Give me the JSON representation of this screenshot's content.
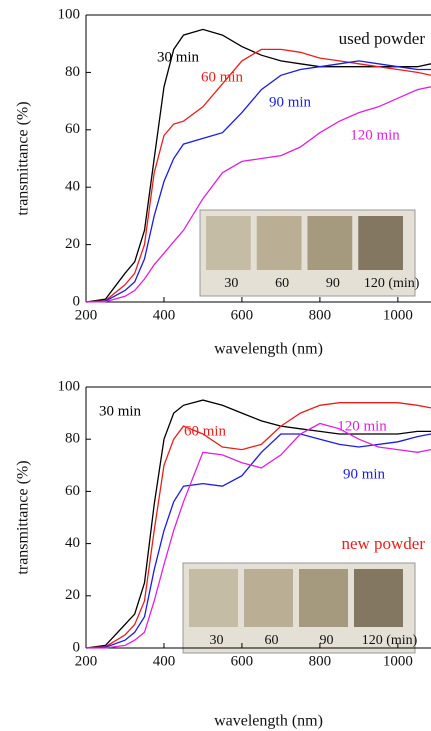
{
  "chart_data": [
    {
      "type": "line",
      "xlabel": "wavelength (nm)",
      "ylabel": "transmittance (%)",
      "annotation": "used powder",
      "inset_labels": [
        "30",
        "60",
        "90",
        "120 (min)"
      ],
      "xlim": [
        200,
        1085
      ],
      "ylim": [
        0,
        100
      ],
      "xticks": [
        200,
        400,
        600,
        800,
        1000
      ],
      "yticks": [
        0,
        20,
        40,
        60,
        80,
        100
      ],
      "x": [
        200,
        250,
        300,
        325,
        350,
        375,
        400,
        425,
        450,
        500,
        550,
        600,
        650,
        700,
        750,
        800,
        850,
        900,
        950,
        1000,
        1050,
        1085
      ],
      "series": [
        {
          "name": "30 min",
          "color": "#000000",
          "values": [
            0,
            1,
            10,
            14,
            25,
            50,
            75,
            88,
            93,
            95,
            93,
            89,
            86,
            84,
            83,
            82,
            82,
            82,
            82,
            82,
            82,
            83
          ]
        },
        {
          "name": "60 min",
          "color": "#e8201c",
          "values": [
            0,
            0.5,
            6,
            10,
            20,
            45,
            58,
            62,
            63,
            68,
            76,
            84,
            88,
            88,
            87,
            85,
            84,
            83,
            82,
            81,
            80,
            79
          ]
        },
        {
          "name": "90 min",
          "color": "#1c1ce0",
          "values": [
            0,
            0.3,
            4,
            7,
            15,
            30,
            42,
            50,
            55,
            57,
            59,
            66,
            74,
            79,
            81,
            82,
            83,
            84,
            83,
            82,
            81,
            81
          ]
        },
        {
          "name": "120 min",
          "color": "#e020e0",
          "values": [
            0,
            0.1,
            2,
            4,
            8,
            13,
            17,
            21,
            25,
            36,
            45,
            49,
            50,
            51,
            54,
            59,
            63,
            66,
            68,
            71,
            74,
            75
          ]
        }
      ]
    },
    {
      "type": "line",
      "xlabel": "wavelength (nm)",
      "ylabel": "transmittance (%)",
      "annotation": "new powder",
      "inset_labels": [
        "30",
        "60",
        "90",
        "120 (min)"
      ],
      "xlim": [
        200,
        1085
      ],
      "ylim": [
        0,
        100
      ],
      "xticks": [
        200,
        400,
        600,
        800,
        1000
      ],
      "yticks": [
        0,
        20,
        40,
        60,
        80,
        100
      ],
      "x": [
        200,
        250,
        300,
        325,
        350,
        375,
        400,
        425,
        450,
        500,
        550,
        600,
        650,
        700,
        750,
        800,
        850,
        900,
        950,
        1000,
        1050,
        1085
      ],
      "series": [
        {
          "name": "30 min",
          "color": "#000000",
          "values": [
            0,
            1,
            9,
            13,
            25,
            55,
            80,
            90,
            93,
            95,
            93,
            90,
            87,
            85,
            84,
            83,
            82,
            82,
            82,
            82,
            83,
            83
          ]
        },
        {
          "name": "60 min",
          "color": "#e8201c",
          "values": [
            0,
            0.5,
            5,
            9,
            18,
            45,
            70,
            80,
            85,
            82,
            77,
            76,
            78,
            85,
            90,
            93,
            94,
            94,
            94,
            94,
            93,
            92
          ]
        },
        {
          "name": "90 min",
          "color": "#1c1ce0",
          "values": [
            0,
            0.3,
            3,
            6,
            12,
            30,
            45,
            56,
            62,
            63,
            62,
            66,
            75,
            82,
            82,
            80,
            78,
            77,
            78,
            79,
            81,
            82
          ]
        },
        {
          "name": "120 min",
          "color": "#e020e0",
          "values": [
            0,
            0,
            1,
            3,
            6,
            18,
            32,
            45,
            56,
            75,
            74,
            71,
            69,
            74,
            82,
            86,
            84,
            80,
            77,
            76,
            75,
            76
          ]
        }
      ]
    }
  ]
}
